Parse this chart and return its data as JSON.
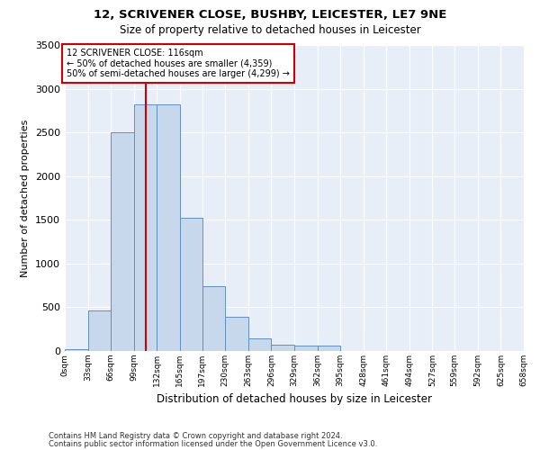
{
  "title1": "12, SCRIVENER CLOSE, BUSHBY, LEICESTER, LE7 9NE",
  "title2": "Size of property relative to detached houses in Leicester",
  "xlabel": "Distribution of detached houses by size in Leicester",
  "ylabel": "Number of detached properties",
  "footer1": "Contains HM Land Registry data © Crown copyright and database right 2024.",
  "footer2": "Contains public sector information licensed under the Open Government Licence v3.0.",
  "annotation_line1": "12 SCRIVENER CLOSE: 116sqm",
  "annotation_line2": "← 50% of detached houses are smaller (4,359)",
  "annotation_line3": "50% of semi-detached houses are larger (4,299) →",
  "bar_edges": [
    0,
    33,
    66,
    99,
    132,
    165,
    197,
    230,
    263,
    296,
    329,
    362,
    395,
    428,
    461,
    494,
    527,
    559,
    592,
    625,
    658
  ],
  "bar_heights": [
    25,
    460,
    2500,
    2820,
    2820,
    1520,
    740,
    390,
    145,
    75,
    60,
    60,
    0,
    0,
    0,
    0,
    0,
    0,
    0,
    0
  ],
  "bar_color": "#c8d8ec",
  "bar_edge_color": "#6090c0",
  "vline_x": 116,
  "vline_color": "#cc0000",
  "annotation_box_color": "#cc0000",
  "ylim": [
    0,
    3500
  ],
  "xlim": [
    0,
    658
  ],
  "tick_labels": [
    "0sqm",
    "33sqm",
    "66sqm",
    "99sqm",
    "132sqm",
    "165sqm",
    "197sqm",
    "230sqm",
    "263sqm",
    "296sqm",
    "329sqm",
    "362sqm",
    "395sqm",
    "428sqm",
    "461sqm",
    "494sqm",
    "527sqm",
    "559sqm",
    "592sqm",
    "625sqm",
    "658sqm"
  ],
  "tick_positions": [
    0,
    33,
    66,
    99,
    132,
    165,
    197,
    230,
    263,
    296,
    329,
    362,
    395,
    428,
    461,
    494,
    527,
    559,
    592,
    625,
    658
  ],
  "plot_bg_color": "#e8eef8",
  "fig_bg_color": "#ffffff"
}
